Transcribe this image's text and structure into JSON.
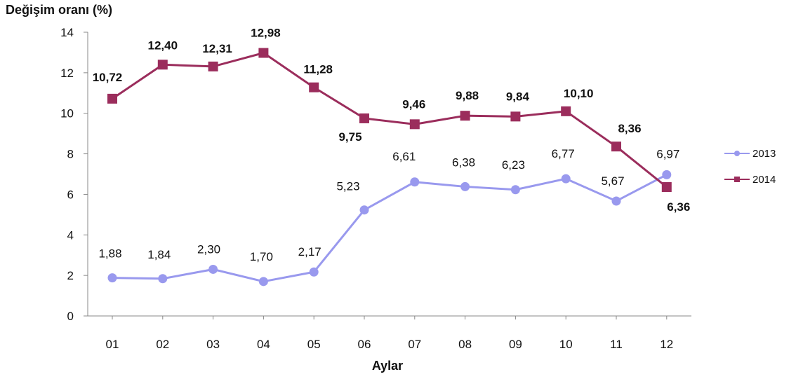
{
  "chart_data": {
    "type": "line",
    "ylabel": "Değişim oranı (%)",
    "xlabel": "Aylar",
    "categories": [
      "01",
      "02",
      "03",
      "04",
      "05",
      "06",
      "07",
      "08",
      "09",
      "10",
      "11",
      "12"
    ],
    "ylim": [
      0,
      14
    ],
    "yticks": [
      0,
      2,
      4,
      6,
      8,
      10,
      12,
      14
    ],
    "grid": false,
    "legend_position": "right",
    "series": [
      {
        "name": "2013",
        "color": "#9999ee",
        "marker": "circle",
        "values": [
          1.88,
          1.84,
          2.3,
          1.7,
          2.17,
          5.23,
          6.61,
          6.38,
          6.23,
          6.77,
          5.67,
          6.97
        ],
        "labels": [
          "1,88",
          "1,84",
          "2,30",
          "1,70",
          "2,17",
          "5,23",
          "6,61",
          "6,38",
          "6,23",
          "6,77",
          "5,67",
          "6,97"
        ]
      },
      {
        "name": "2014",
        "color": "#9b2d5c",
        "marker": "square",
        "values": [
          10.72,
          12.4,
          12.31,
          12.98,
          11.28,
          9.75,
          9.46,
          9.88,
          9.84,
          10.1,
          8.36,
          6.36
        ],
        "labels": [
          "10,72",
          "12,40",
          "12,31",
          "12,98",
          "11,28",
          "9,75",
          "9,46",
          "9,88",
          "9,84",
          "10,10",
          "8,36",
          "6,36"
        ]
      }
    ]
  }
}
